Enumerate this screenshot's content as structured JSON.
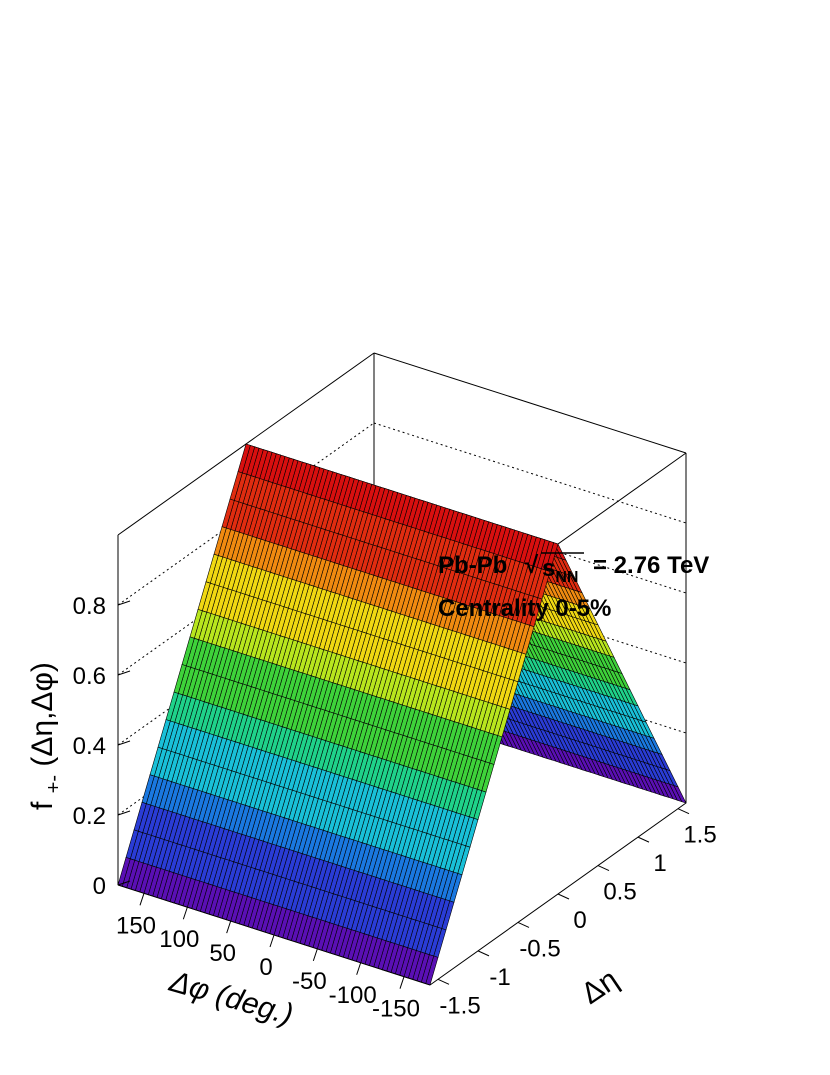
{
  "chart_data": {
    "type": "surface",
    "title": "",
    "annotations": {
      "collision": "Pb-Pb",
      "sqrt_symbol": "√",
      "s_label": "s",
      "s_sub": "NN",
      "energy": "= 2.76 TeV",
      "centrality": "Centrality 0-5%"
    },
    "xaxis": {
      "label": "Δφ (deg.)",
      "range": [
        -180,
        180
      ],
      "ticks": [
        150,
        100,
        50,
        0,
        -50,
        -100,
        -150
      ],
      "tick_labels": [
        "150",
        "100",
        "50",
        "0",
        "-50",
        "-100",
        "-150"
      ]
    },
    "yaxis": {
      "label": "Δη",
      "range": [
        -1.6,
        1.6
      ],
      "ticks": [
        -1.5,
        -1,
        -0.5,
        0,
        0.5,
        1,
        1.5
      ],
      "tick_labels": [
        "-1.5",
        "-1",
        "-0.5",
        "0",
        "0.5",
        "1",
        "1.5"
      ]
    },
    "zaxis": {
      "label_main": "f",
      "label_sub": "+-",
      "label_rest": "(Δη,Δφ)",
      "range": [
        0,
        1
      ],
      "ticks": [
        0,
        0.2,
        0.4,
        0.6,
        0.8
      ],
      "tick_labels": [
        "0",
        "0.2",
        "0.4",
        "0.6",
        "0.8"
      ]
    },
    "surface": {
      "description_values": "f depends only on Δη: triangular ridge f = 1 - |Δη|/1.6, constant in Δφ",
      "eta_samples": [
        -1.6,
        -1.2,
        -0.8,
        -0.4,
        0,
        0.4,
        0.8,
        1.2,
        1.6
      ],
      "f_values": [
        0,
        0.25,
        0.5,
        0.75,
        1,
        0.75,
        0.5,
        0.25,
        0
      ],
      "phi_bins": 72,
      "eta_bins": 32
    },
    "colors": {
      "palette": [
        "#5a0fb4",
        "#2a3cd6",
        "#1a78e0",
        "#19c0d8",
        "#1fd28a",
        "#3ed23a",
        "#b8e61e",
        "#f0d812",
        "#f08a10",
        "#e02c10",
        "#d80f0f"
      ]
    },
    "grid": true
  }
}
